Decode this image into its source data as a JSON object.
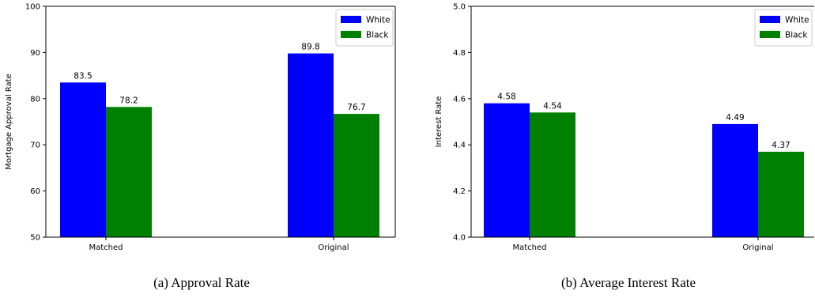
{
  "colors": {
    "white_series": "#0000ff",
    "black_series": "#008000"
  },
  "chart_data": [
    {
      "type": "bar",
      "caption": "(a) Approval Rate",
      "categories": [
        "Matched",
        "Original"
      ],
      "series": [
        {
          "name": "White",
          "values": [
            83.5,
            89.8
          ],
          "labels": [
            "83.5",
            "89.8"
          ]
        },
        {
          "name": "Black",
          "values": [
            78.2,
            76.7
          ],
          "labels": [
            "78.2",
            "76.7"
          ]
        }
      ],
      "xlabel": "",
      "ylabel": "Mortgage Approval Rate",
      "ylim": [
        50,
        100
      ],
      "yticks": [
        50,
        60,
        70,
        80,
        90,
        100
      ],
      "ytick_labels": [
        "50",
        "60",
        "70",
        "80",
        "90",
        "100"
      ],
      "legend": "top-right",
      "grid": false
    },
    {
      "type": "bar",
      "caption": "(b) Average Interest Rate",
      "categories": [
        "Matched",
        "Original"
      ],
      "series": [
        {
          "name": "White",
          "values": [
            4.58,
            4.49
          ],
          "labels": [
            "4.58",
            "4.49"
          ]
        },
        {
          "name": "Black",
          "values": [
            4.54,
            4.37
          ],
          "labels": [
            "4.54",
            "4.37"
          ]
        }
      ],
      "xlabel": "",
      "ylabel": "Interest Rate",
      "ylim": [
        4.0,
        5.0
      ],
      "yticks": [
        4.0,
        4.2,
        4.4,
        4.6,
        4.8,
        5.0
      ],
      "ytick_labels": [
        "4.0",
        "4.2",
        "4.4",
        "4.6",
        "4.8",
        "5.0"
      ],
      "legend": "top-right",
      "grid": false
    }
  ]
}
